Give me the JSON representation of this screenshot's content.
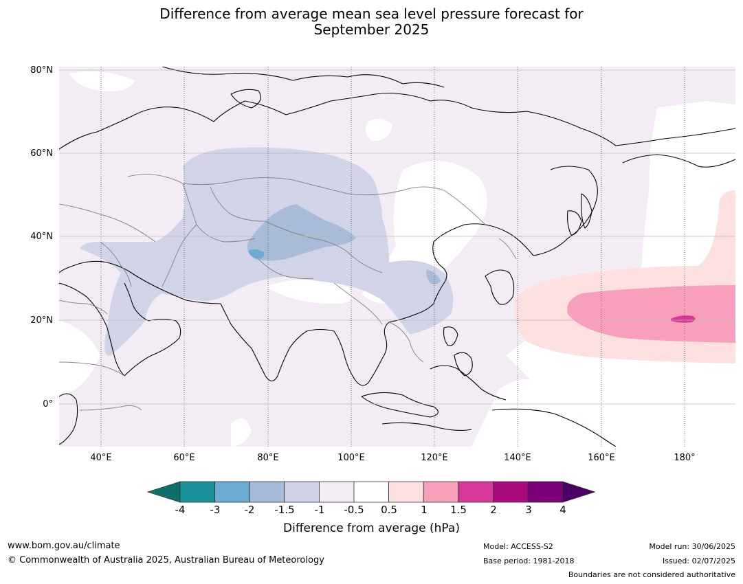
{
  "title_line1": "Difference from average mean sea level pressure forecast for",
  "title_line2": "September 2025",
  "lat_labels": [
    "80°N",
    "60°N",
    "40°N",
    "20°N",
    "0°"
  ],
  "lon_labels": [
    "40°E",
    "60°E",
    "80°E",
    "100°E",
    "120°E",
    "140°E",
    "160°E",
    "180°"
  ],
  "colorbar": {
    "ticks": [
      "-4",
      "-3",
      "-2",
      "-1.5",
      "-1",
      "-0.5",
      "0.5",
      "1",
      "1.5",
      "2",
      "3",
      "4"
    ],
    "colors": [
      "#0e6f6a",
      "#1b9199",
      "#6aacd4",
      "#a5bad8",
      "#d0d2e6",
      "#f2ecf5",
      "#ffffff",
      "#fde0e0",
      "#f89fba",
      "#d8379b",
      "#ab0a7e",
      "#7b0077",
      "#4b0068"
    ],
    "title": "Difference from average (hPa)"
  },
  "footer": {
    "website": "www.bom.gov.au/climate",
    "copyright": "© Commonwealth of Australia 2025, Australian Bureau of Meteorology",
    "model": "Model: ACCESS-S2",
    "base_period": "Base period: 1981-2018",
    "model_run": "Model run: 30/06/2025",
    "issued": "Issued: 02/07/2025",
    "disclaimer": "Boundaries are not considered authoritative"
  }
}
